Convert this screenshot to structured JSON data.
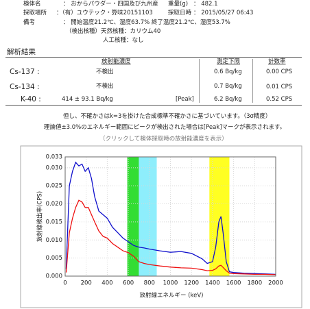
{
  "header": {
    "fields": [
      {
        "label": "検体名",
        "value": "： おからパウダー・四国及び九州産"
      },
      {
        "label": "重量(g)",
        "value": "： 482.1"
      },
      {
        "label": "採取場所",
        "value": "：（有）ユウテック・算味20151103"
      },
      {
        "label": "採取日時",
        "value": "： 2015/05/27 06:43"
      },
      {
        "label": "備考",
        "value": "： 開始温度21.2℃、湿度63.7% 終了温度21.2℃、湿度53.7%"
      }
    ],
    "detected_natural": "（検出核種）天然核種：カリウム40",
    "detected_artificial": "人工核種：なし"
  },
  "results": {
    "section_title": "解析結果",
    "columns": [
      "放射能濃度",
      "測定下限",
      "計数率"
    ],
    "rows": [
      {
        "nuclide": "Cs-137 :",
        "concentration": "不検出",
        "limit": "0.6  Bq/kg",
        "rate": "0.00 CPS"
      },
      {
        "nuclide": "Cs-134 :",
        "concentration": "不検出",
        "limit": "0.7  Bq/kg",
        "rate": "0.01 CPS"
      },
      {
        "nuclide": "K-40 :",
        "concentration": "414 ±  93.1 Bq/kg",
        "peak": "[Peak]",
        "limit": "6.2  Bq/kg",
        "rate": "0.52 CPS"
      }
    ]
  },
  "notes": [
    "但し、不確かさはk=3を掛けた合成標準不確かさに基づいています。（3σ精度）",
    "理論値±3.0%のエネルギー範囲にピークが検出された場合は[Peak]マークが表示されます。"
  ],
  "link": "（クリックして検体採取時の放射能濃度を表示）",
  "chart_data": {
    "type": "line",
    "xlabel": "放射線エネルギー (keV)",
    "ylabel": "放射線検出率(CPS)",
    "xlim": [
      0,
      2000
    ],
    "xticks": [
      0,
      200,
      400,
      600,
      800,
      1000,
      1200,
      1400,
      1600,
      1800,
      2000
    ],
    "ylim": [
      0,
      0.033
    ],
    "yticks": [
      {
        "value": 0,
        "label": "0.000"
      },
      {
        "value": 0.005,
        "label": "0.005"
      },
      {
        "value": 0.01,
        "label": "0.010"
      },
      {
        "value": 0.015,
        "label": "0.015"
      },
      {
        "value": 0.02,
        "label": "0.020"
      },
      {
        "value": 0.025,
        "label": "0.025"
      },
      {
        "value": 0.03,
        "label": "0.030"
      },
      0.033
    ],
    "grid": true,
    "bands": [
      {
        "from": 590,
        "to": 700,
        "color": "#33dd33"
      },
      {
        "from": 700,
        "to": 870,
        "color": "#8eeefc"
      },
      {
        "from": 1370,
        "to": 1560,
        "color": "#ffff22"
      }
    ],
    "x": [
      10,
      40,
      70,
      100,
      130,
      160,
      190,
      220,
      250,
      280,
      320,
      360,
      400,
      450,
      500,
      550,
      600,
      650,
      700,
      750,
      800,
      900,
      1000,
      1100,
      1200,
      1300,
      1350,
      1400,
      1430,
      1460,
      1480,
      1500,
      1530,
      1560,
      1600,
      1700,
      1800,
      1900,
      2000
    ],
    "series": [
      {
        "color": "#1010cc",
        "values": [
          0.002,
          0.025,
          0.029,
          0.0315,
          0.0305,
          0.031,
          0.029,
          0.03,
          0.027,
          0.022,
          0.018,
          0.017,
          0.016,
          0.0135,
          0.012,
          0.0105,
          0.0095,
          0.0085,
          0.008,
          0.0078,
          0.0075,
          0.007,
          0.0066,
          0.0068,
          0.0063,
          0.0048,
          0.0035,
          0.004,
          0.008,
          0.015,
          0.0165,
          0.012,
          0.004,
          0.0012,
          0.001,
          0.0008,
          0.0007,
          0.0006,
          0.0005
        ]
      },
      {
        "color": "#ee1111",
        "values": [
          0.001,
          0.012,
          0.016,
          0.019,
          0.021,
          0.0205,
          0.019,
          0.019,
          0.017,
          0.015,
          0.0125,
          0.011,
          0.0105,
          0.009,
          0.008,
          0.007,
          0.0065,
          0.0055,
          0.004,
          0.0035,
          0.0032,
          0.0028,
          0.0025,
          0.0023,
          0.0022,
          0.0018,
          0.0015,
          0.0016,
          0.002,
          0.0028,
          0.003,
          0.0024,
          0.0015,
          0.0008,
          0.0007,
          0.0006,
          0.0005,
          0.0005,
          0.0004
        ]
      }
    ]
  }
}
